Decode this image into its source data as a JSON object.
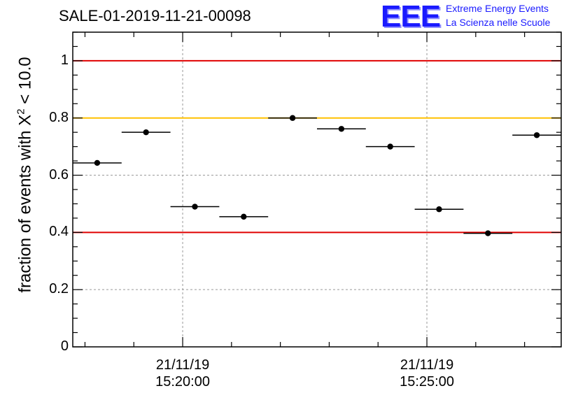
{
  "title": "SALE-01-2019-11-21-00098",
  "logo": {
    "letters": "EEE",
    "line1": "Extreme Energy Events",
    "line2": "La Scienza nelle Scuole",
    "color": "#1a1aff"
  },
  "chart_data": {
    "type": "scatter",
    "title": "SALE-01-2019-11-21-00098",
    "ylabel_prefix": "fraction of events with ",
    "ylabel_symbol": "X",
    "ylabel_sup": "2",
    "ylabel_suffix": " < 10.0",
    "ylim": [
      0,
      1.1
    ],
    "yticks": [
      0,
      0.2,
      0.4,
      0.6,
      0.8,
      1
    ],
    "ytick_labels": [
      "0",
      "0.2",
      "0.4",
      "0.6",
      "0.8",
      "1"
    ],
    "xlim": [
      "15:17:45",
      "15:27:45"
    ],
    "xticks": [
      {
        "time": "15:20:00",
        "date": "21/11/19",
        "label": "15:20:00"
      },
      {
        "time": "15:25:00",
        "date": "21/11/19",
        "label": "15:25:00"
      }
    ],
    "grid": true,
    "points": [
      {
        "x": "15:18:15",
        "y": 0.643,
        "xerr": 30
      },
      {
        "x": "15:19:15",
        "y": 0.75,
        "xerr": 30
      },
      {
        "x": "15:20:15",
        "y": 0.49,
        "xerr": 30
      },
      {
        "x": "15:21:15",
        "y": 0.455,
        "xerr": 30
      },
      {
        "x": "15:22:15",
        "y": 0.8,
        "xerr": 30
      },
      {
        "x": "15:23:15",
        "y": 0.762,
        "xerr": 30
      },
      {
        "x": "15:24:15",
        "y": 0.7,
        "xerr": 30
      },
      {
        "x": "15:25:15",
        "y": 0.481,
        "xerr": 30
      },
      {
        "x": "15:26:15",
        "y": 0.397,
        "xerr": 30
      },
      {
        "x": "15:27:15",
        "y": 0.74,
        "xerr": 30
      }
    ],
    "reference_lines": [
      {
        "y": 1.0,
        "color": "#e00000"
      },
      {
        "y": 0.8,
        "color": "#ffc000"
      },
      {
        "y": 0.4,
        "color": "#e00000"
      }
    ]
  }
}
